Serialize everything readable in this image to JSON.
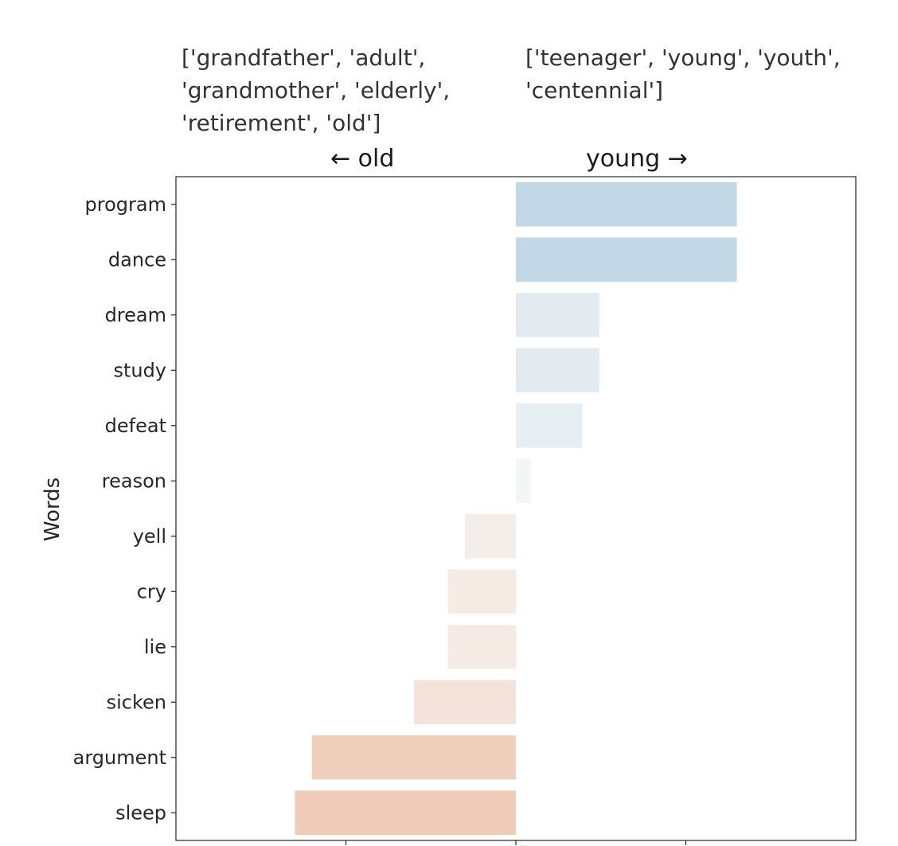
{
  "chart_data": {
    "type": "bar",
    "orientation": "horizontal",
    "left_group_words": "['grandfather', 'adult',\n'grandmother', 'elderly',\n'retirement', 'old']",
    "right_group_words": "['teenager', 'young', 'youth',\n'centennial']",
    "left_direction_label": "← old",
    "right_direction_label": "young →",
    "ylabel": "Words",
    "categories": [
      "program",
      "dance",
      "dream",
      "study",
      "defeat",
      "reason",
      "yell",
      "cry",
      "lie",
      "sicken",
      "argument",
      "sleep"
    ],
    "values": [
      1.3,
      1.3,
      0.49,
      0.49,
      0.39,
      0.09,
      -0.3,
      -0.4,
      -0.4,
      -0.6,
      -1.2,
      -1.3
    ],
    "xlim": [
      -2.0,
      2.0
    ],
    "xticks": [
      -1.0,
      0.0,
      1.0
    ],
    "grid": false,
    "colors": {
      "positive_max": "#c2d8e6",
      "negative_max": "#f0ccb8",
      "neutral": "#f7f7f7",
      "axis": "#262626"
    }
  }
}
